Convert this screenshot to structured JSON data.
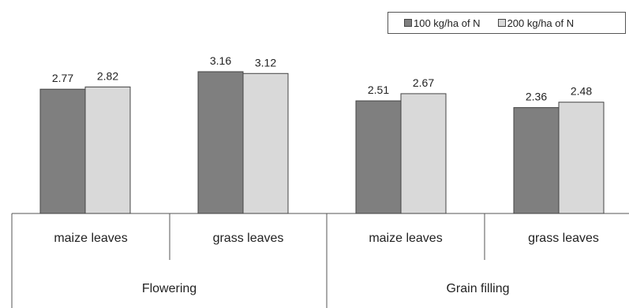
{
  "chart_data": {
    "type": "bar",
    "categories": [
      "maize leaves",
      "grass leaves",
      "maize leaves",
      "grass leaves"
    ],
    "groups": [
      {
        "label": "Flowering",
        "categories": [
          0,
          1
        ]
      },
      {
        "label": "Grain filling",
        "categories": [
          2,
          3
        ]
      }
    ],
    "series": [
      {
        "name": "100 kg/ha of N",
        "values": [
          2.77,
          3.16,
          2.51,
          2.36
        ],
        "color": "#7f7f7f"
      },
      {
        "name": "200 kg/ha of N",
        "values": [
          2.82,
          3.12,
          2.67,
          2.48
        ],
        "color": "#d9d9d9"
      }
    ],
    "data_labels": [
      [
        "2.77",
        "3.16",
        "2.51",
        "2.36"
      ],
      [
        "2.82",
        "3.12",
        "2.67",
        "2.48"
      ]
    ],
    "legend_position": "top-right",
    "grid": false,
    "ylim": [
      0,
      3.5
    ]
  }
}
